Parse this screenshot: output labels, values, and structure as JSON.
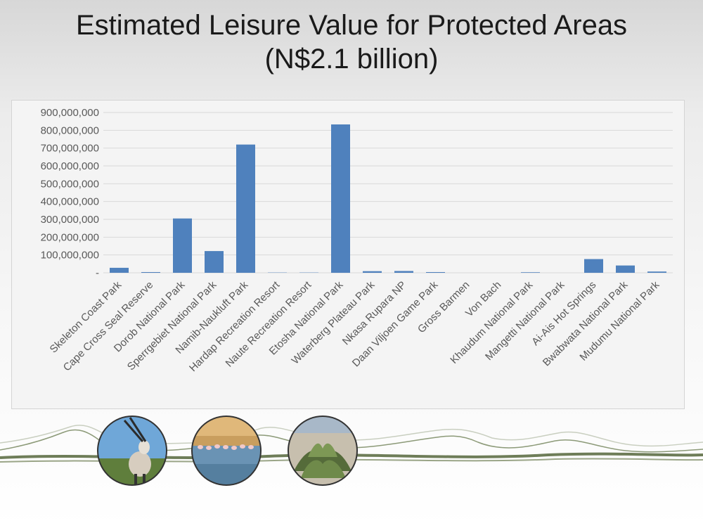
{
  "slide": {
    "title_line1": "Estimated Leisure Value for Protected Areas",
    "title_line2": "(N$2.1 billion)"
  },
  "colors": {
    "bar": "#4f81bd",
    "gridline": "#d9d9d9",
    "axis_text": "#595959",
    "landscape_line": "#6e7d58",
    "landscape_light": "#c9cfc0"
  },
  "chart_data": {
    "type": "bar",
    "categories": [
      "Skeleton Coast Park",
      "Cape Cross Seal Reserve",
      "Dorob National Park",
      "Sperrgebiet National Park",
      "Namib-Naukluft Park",
      "Hardap Recreation Resort",
      "Naute Recreation Resort",
      "Etosha National Park",
      "Waterberg Plateau Park",
      "Nkasa Rupara NP",
      "Daan Viljoen Game Park",
      "Gross Barmen",
      "Von Bach",
      "Khaudum National Park",
      "Mangetti National Park",
      "Ai-Ais Hot Springs",
      "Bwabwata National Park",
      "Mudumu National Park"
    ],
    "values": [
      28000000,
      4000000,
      305000000,
      122000000,
      720000000,
      1500000,
      1500000,
      833000000,
      9000000,
      10000000,
      4000000,
      0,
      0,
      3000000,
      0,
      77000000,
      41000000,
      7000000
    ],
    "y_ticks": [
      0,
      100000000,
      200000000,
      300000000,
      400000000,
      500000000,
      600000000,
      700000000,
      800000000,
      900000000
    ],
    "y_tick_labels": [
      "-",
      "100,000,000",
      "200,000,000",
      "300,000,000",
      "400,000,000",
      "500,000,000",
      "600,000,000",
      "700,000,000",
      "800,000,000",
      "900,000,000"
    ],
    "ylim": [
      0,
      900000000
    ],
    "grid": true,
    "legend": "none"
  },
  "photos": [
    {
      "icon": "oryx-photo-icon"
    },
    {
      "icon": "flamingo-photo-icon"
    },
    {
      "icon": "welwitschia-photo-icon"
    }
  ]
}
